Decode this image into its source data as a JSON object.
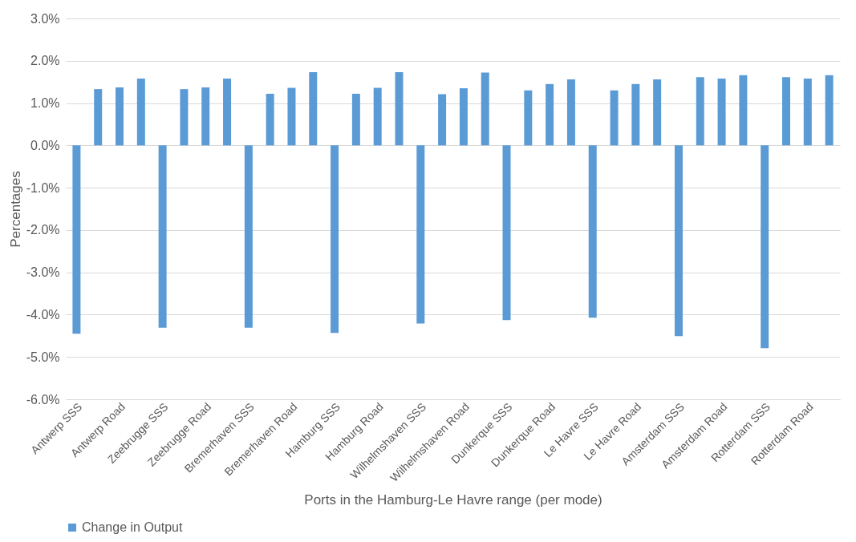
{
  "chart_data": {
    "type": "bar",
    "xlabel": "Ports in the Hamburg-Le Havre range (per mode)",
    "ylabel": "Percentages",
    "categories": [
      "Antwerp SSS",
      null,
      "Antwerp Road",
      null,
      "Zeebrugge SSS",
      null,
      "Zeebrugge Road",
      null,
      "Bremerhaven SSS",
      null,
      "Bremerhaven Road",
      null,
      "Hamburg SSS",
      null,
      "Hamburg Road",
      null,
      "Wilhelmshaven SSS",
      null,
      "Wilhelmshaven Road",
      null,
      "Dunkerque SSS",
      null,
      "Dunkerque Road",
      null,
      "Le Havre SSS",
      null,
      "Le Havre Road",
      null,
      "Amsterdam SSS",
      null,
      "Amsterdam Road",
      null,
      "Rotterdam SSS",
      null,
      "Rotterdam Road",
      null
    ],
    "series": [
      {
        "name": "Change in Output",
        "color": "#5b9bd5",
        "values": [
          -4.45,
          1.33,
          1.37,
          1.58,
          -4.31,
          1.33,
          1.37,
          1.58,
          -4.31,
          1.22,
          1.36,
          1.73,
          -4.43,
          1.22,
          1.36,
          1.73,
          -4.21,
          1.21,
          1.35,
          1.72,
          -4.13,
          1.3,
          1.45,
          1.56,
          -4.07,
          1.3,
          1.45,
          1.56,
          -4.51,
          1.61,
          1.58,
          1.66,
          -4.79,
          1.61,
          1.58,
          1.66
        ]
      }
    ],
    "ylim": [
      -6,
      3
    ],
    "yticks": [
      {
        "value": -6,
        "label": "-6.0%"
      },
      {
        "value": -5,
        "label": "-5.0%"
      },
      {
        "value": -4,
        "label": "-4.0%"
      },
      {
        "value": -3,
        "label": "-3.0%"
      },
      {
        "value": -2,
        "label": "-2.0%"
      },
      {
        "value": -1,
        "label": "-1.0%"
      },
      {
        "value": 0,
        "label": "0.0%"
      },
      {
        "value": 1,
        "label": "1.0%"
      },
      {
        "value": 2,
        "label": "2.0%"
      },
      {
        "value": 3,
        "label": "3.0%"
      }
    ],
    "grid": "y",
    "legend": "bottom"
  }
}
